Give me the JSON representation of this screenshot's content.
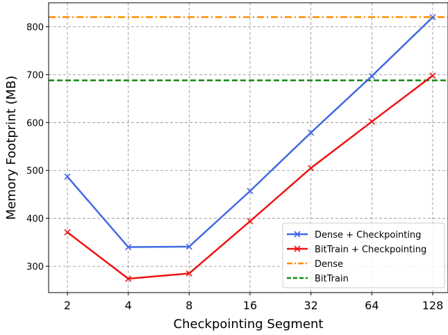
{
  "chart_data": {
    "type": "line",
    "title": "",
    "xlabel": "Checkpointing Segment",
    "ylabel": "Memory Footprint (MB)",
    "categories": [
      "2",
      "4",
      "8",
      "16",
      "32",
      "64",
      "128"
    ],
    "x_scale": "log2",
    "ylim": [
      245,
      850
    ],
    "yticks": [
      300,
      400,
      500,
      600,
      700,
      800
    ],
    "grid": true,
    "legend_position": "lower-right",
    "series": [
      {
        "name": "Dense + Checkpointing",
        "color": "#4169e1",
        "marker": "x",
        "values": [
          487,
          340,
          341,
          457,
          579,
          697,
          820
        ]
      },
      {
        "name": "BitTrain + Checkpointing",
        "color": "#ee1111",
        "marker": "x",
        "values": [
          371,
          274,
          285,
          394,
          505,
          602,
          698
        ]
      }
    ],
    "hlines": [
      {
        "name": "Dense",
        "color": "#ff8c00",
        "style": "dashdot",
        "value": 820
      },
      {
        "name": "BitTrain",
        "color": "#118811",
        "style": "dashed",
        "value": 688
      }
    ]
  }
}
